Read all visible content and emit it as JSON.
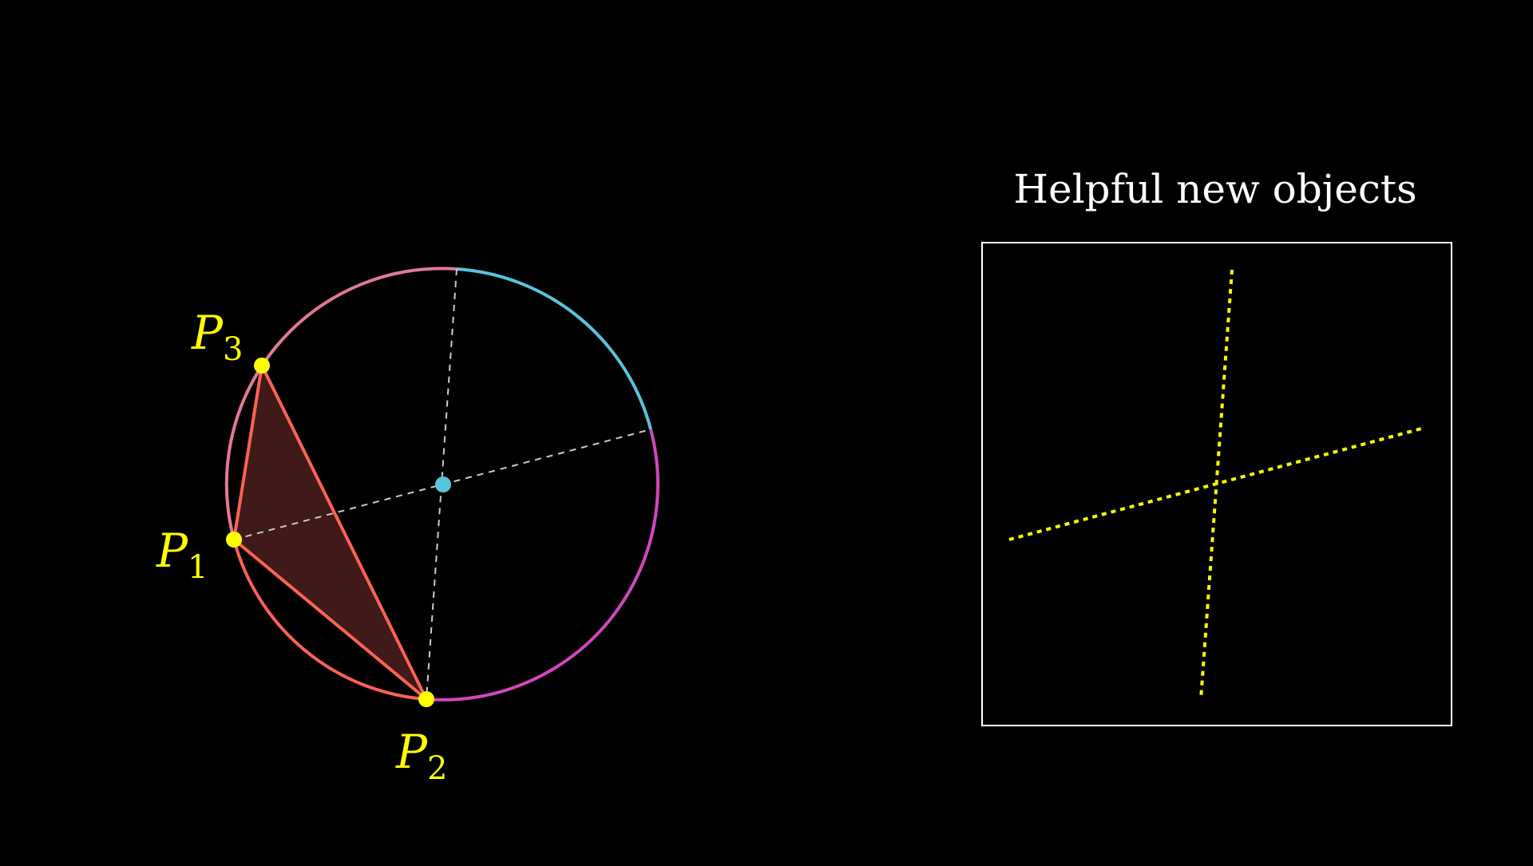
{
  "panel": {
    "title": "Helpful new objects"
  },
  "points": [
    {
      "id": "P1",
      "letter": "P",
      "subscript": "1"
    },
    {
      "id": "P2",
      "letter": "P",
      "subscript": "2"
    },
    {
      "id": "P3",
      "letter": "P",
      "subscript": "3"
    }
  ],
  "colors": {
    "background": "#000000",
    "point": "#ffff00",
    "center": "#58c4dd",
    "triangle_stroke": "#fc6255",
    "triangle_fill": "#3f1a18",
    "arc_pink": "#e07a95",
    "arc_blue": "#58c4dd",
    "arc_magenta": "#d147bd",
    "arc_red": "#fc6255",
    "dashed_line": "#cccccc",
    "frame": "#ffffff",
    "bisector": "#ffff00"
  }
}
